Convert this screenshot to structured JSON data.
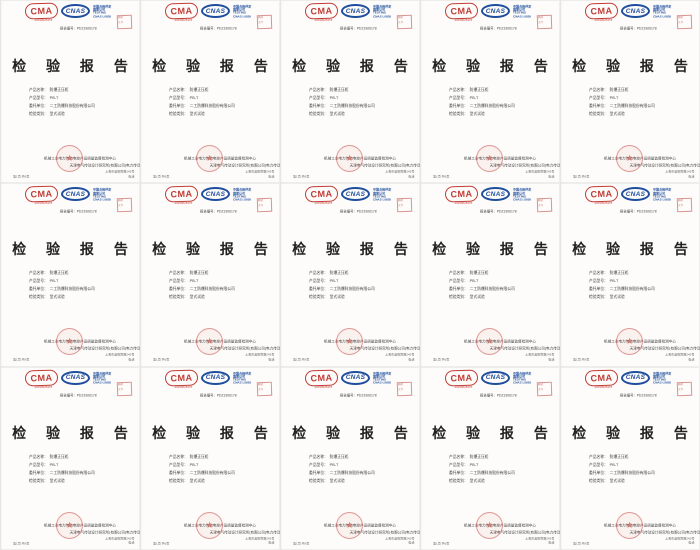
{
  "grid": {
    "rows": 3,
    "columns": 5,
    "tile_count": 15
  },
  "colors": {
    "cma_red": "#c23b35",
    "cnas_blue": "#1f4e9e",
    "stamp_red": "#d2827e",
    "seal_red": "#c5544c",
    "ink": "#222222",
    "page_bg": "#fdfcfa"
  },
  "tile": {
    "cma": {
      "text": "CMA",
      "subtext": "2015002547Z"
    },
    "cnas": {
      "text": "CNAS",
      "lines": [
        "中国合格评定",
        "国家认可",
        "TESTING",
        "CNAS L0855"
      ]
    },
    "stamp": {
      "row1": "受控",
      "row2": "文件"
    },
    "report_no": "报告编号：PDZ1906178",
    "title": "检 验 报 告",
    "info": [
      {
        "label": "产品名称：",
        "value": "防爆正压柜"
      },
      {
        "label": "产品型号：",
        "value": "PB-T"
      },
      {
        "label": "委托单位：",
        "value": "二工防爆科技股份有限公司"
      },
      {
        "label": "检验类别：",
        "value": "型式试验"
      }
    ],
    "footer_lines": [
      "机械工业电力传动电控产品质量监督检测中心",
      "天津电气传动设计研究所(有限公司)电力传动电控产品质量监督检测中心"
    ],
    "seal_star": "★",
    "bottom_left": "第1页 共6页",
    "bottom_right": [
      "上海市襄阳南路245号",
      "电话"
    ]
  }
}
